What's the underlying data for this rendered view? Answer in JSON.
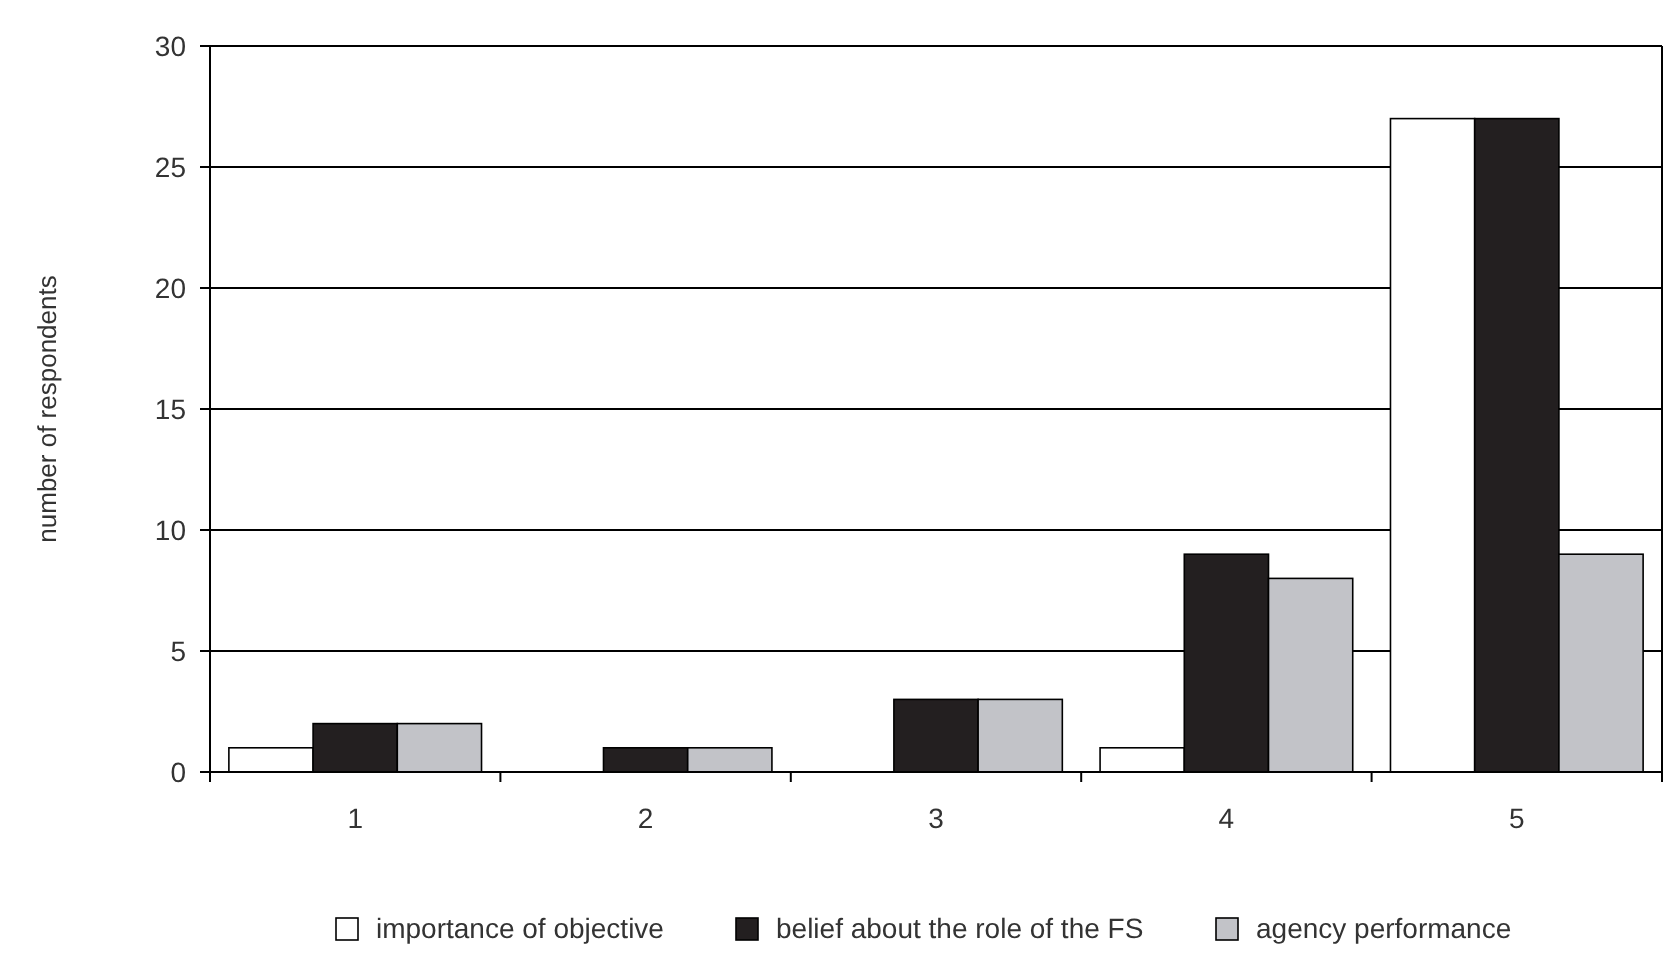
{
  "chart_data": {
    "type": "bar",
    "ylabel": "number of respondents",
    "categories": [
      "1",
      "2",
      "3",
      "4",
      "5"
    ],
    "series": [
      {
        "name": "importance of objective",
        "color": "#ffffff",
        "values": [
          1,
          0,
          0,
          1,
          27
        ]
      },
      {
        "name": "belief about the role of the FS",
        "color": "#231f20",
        "values": [
          2,
          1,
          3,
          9,
          27
        ]
      },
      {
        "name": "agency performance",
        "color": "#c2c3c8",
        "values": [
          2,
          1,
          3,
          8,
          9
        ]
      }
    ],
    "ylim": [
      0,
      30
    ],
    "yticks": [
      0,
      5,
      10,
      15,
      20,
      25,
      30
    ],
    "grid": "y",
    "legend": "bottom"
  }
}
